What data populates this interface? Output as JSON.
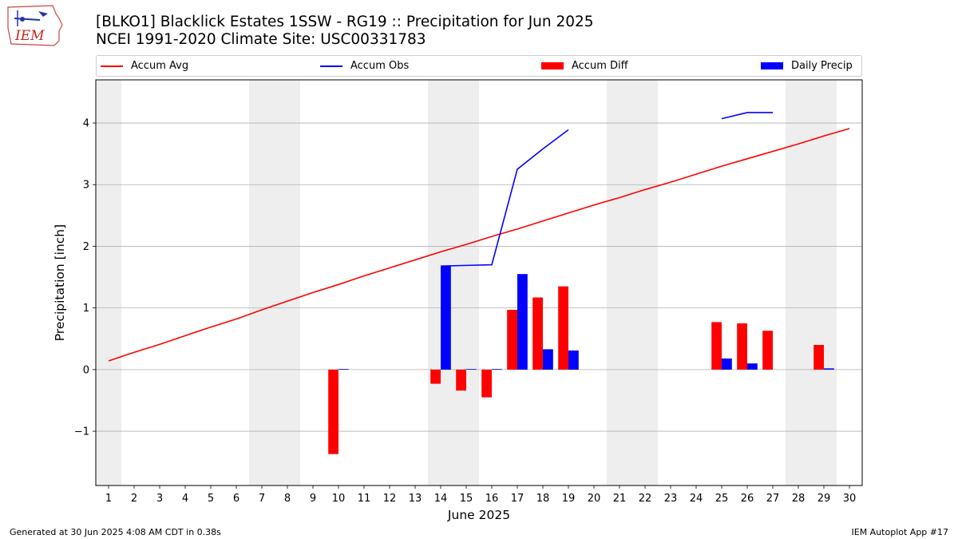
{
  "logo": {
    "text": "IEM"
  },
  "header": {
    "title": "[BLKO1] Blacklick Estates 1SSW - RG19 :: Precipitation for Jun 2025",
    "subtitle": "NCEI 1991-2020 Climate Site: USC00331783"
  },
  "footer": {
    "left": "Generated at 30 Jun 2025 4:08 AM CDT in 0.38s",
    "right": "IEM Autoplot App #17"
  },
  "colors": {
    "avg": "#ff0000",
    "obs": "#0000ff",
    "diff": "#ff0000",
    "daily": "#0000ff",
    "weekend": "#eeeeee",
    "grid": "#b0b0b0"
  },
  "chart_data": {
    "type": "bar",
    "title": "[BLKO1] Blacklick Estates 1SSW - RG19 :: Precipitation for Jun 2025",
    "xlabel": "June 2025",
    "ylabel": "Precipitation [inch]",
    "xlim": [
      0.5,
      30.5
    ],
    "ylim": [
      -1.88,
      4.7
    ],
    "x_ticks": [
      1,
      2,
      3,
      4,
      5,
      6,
      7,
      8,
      9,
      10,
      11,
      12,
      13,
      14,
      15,
      16,
      17,
      18,
      19,
      20,
      21,
      22,
      23,
      24,
      25,
      26,
      27,
      28,
      29,
      30
    ],
    "y_ticks": [
      -1,
      0,
      1,
      2,
      3,
      4
    ],
    "y_tick_labels": [
      "−1",
      "0",
      "1",
      "2",
      "3",
      "4"
    ],
    "grid": "horizontal",
    "legend_position": "top",
    "shaded_weekend_days": [
      1,
      7,
      8,
      14,
      15,
      21,
      22,
      28,
      29
    ],
    "legend": [
      "Accum Avg",
      "Accum Obs",
      "Accum Diff",
      "Daily Precip"
    ],
    "series": [
      {
        "name": "Accum Avg",
        "kind": "line",
        "x": [
          1,
          2,
          3,
          4,
          5,
          6,
          7,
          8,
          9,
          10,
          11,
          12,
          13,
          14,
          15,
          16,
          17,
          18,
          19,
          20,
          21,
          22,
          23,
          24,
          25,
          26,
          27,
          28,
          29,
          30
        ],
        "values": [
          0.14,
          0.28,
          0.41,
          0.55,
          0.69,
          0.82,
          0.97,
          1.11,
          1.25,
          1.38,
          1.52,
          1.65,
          1.78,
          1.91,
          2.03,
          2.16,
          2.28,
          2.41,
          2.54,
          2.67,
          2.79,
          2.92,
          3.04,
          3.17,
          3.3,
          3.42,
          3.54,
          3.66,
          3.79,
          3.91
        ]
      },
      {
        "name": "Accum Obs",
        "kind": "line",
        "segments": [
          {
            "x": [
              14,
              15,
              16,
              17,
              18,
              19
            ],
            "values": [
              1.68,
              1.69,
              1.7,
              3.25,
              3.58,
              3.89
            ]
          },
          {
            "x": [
              25,
              26,
              27
            ],
            "values": [
              4.07,
              4.17,
              4.17
            ]
          }
        ]
      },
      {
        "name": "Accum Diff",
        "kind": "bar",
        "x": [
          10,
          14,
          15,
          16,
          17,
          18,
          19,
          25,
          26,
          27,
          29
        ],
        "values": [
          -1.37,
          -0.23,
          -0.34,
          -0.45,
          0.97,
          1.17,
          1.35,
          0.77,
          0.75,
          0.63,
          0.4
        ]
      },
      {
        "name": "Daily Precip",
        "kind": "bar",
        "x": [
          10,
          14,
          15,
          16,
          17,
          18,
          19,
          25,
          26,
          29
        ],
        "values": [
          0.01,
          1.68,
          0.01,
          0.01,
          1.55,
          0.33,
          0.31,
          0.18,
          0.1,
          0.02
        ]
      }
    ]
  }
}
